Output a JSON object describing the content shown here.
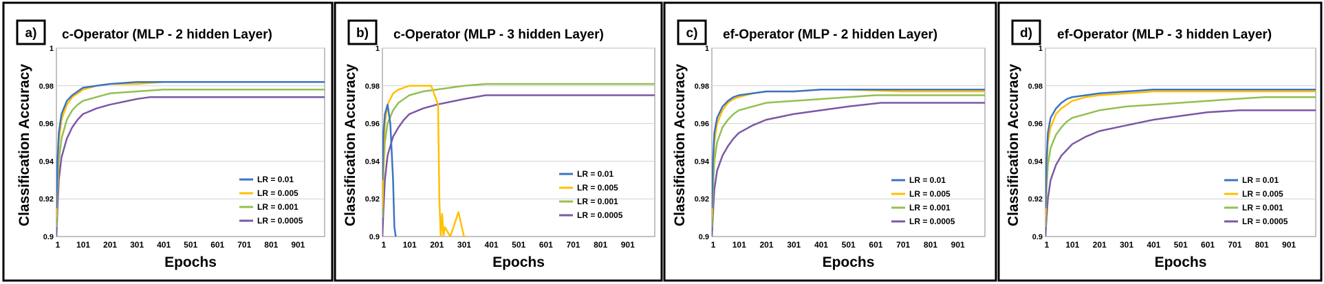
{
  "panels": [
    {
      "letter": "a)",
      "title": "c-Operator  (MLP - 2 hidden Layer)"
    },
    {
      "letter": "b)",
      "title": "c-Operator  (MLP - 3 hidden Layer)"
    },
    {
      "letter": "c)",
      "title": "ef-Operator  (MLP - 2 hidden Layer)"
    },
    {
      "letter": "d)",
      "title": "ef-Operator  (MLP - 3 hidden Layer)"
    }
  ],
  "colors": {
    "lr_001": "#3B73C4",
    "lr_0005": "#FFC000",
    "lr_0001": "#92C050",
    "lr_00005": "#7B57A5"
  },
  "chart_data": [
    {
      "type": "line",
      "xlabel": "Epochs",
      "ylabel": "Classification Accuracy",
      "xlim": [
        1,
        1000
      ],
      "ylim": [
        0.9,
        1.0
      ],
      "xticks": [
        "1",
        "101",
        "201",
        "301",
        "401",
        "501",
        "601",
        "701",
        "801",
        "901"
      ],
      "yticks": [
        "0.9",
        "0.92",
        "0.94",
        "0.96",
        "0.98",
        "1"
      ],
      "legend_position": "bottom-right",
      "series": [
        {
          "name": "LR = 0.01",
          "x": [
            1,
            5,
            10,
            20,
            40,
            60,
            80,
            100,
            150,
            200,
            300,
            400,
            450,
            1000
          ],
          "y": [
            0.915,
            0.94,
            0.955,
            0.965,
            0.972,
            0.975,
            0.977,
            0.979,
            0.98,
            0.981,
            0.982,
            0.982,
            0.982,
            0.982
          ]
        },
        {
          "name": "LR = 0.005",
          "x": [
            1,
            5,
            10,
            20,
            40,
            60,
            80,
            100,
            150,
            200,
            300,
            400,
            450,
            1000
          ],
          "y": [
            0.91,
            0.935,
            0.95,
            0.962,
            0.97,
            0.974,
            0.976,
            0.978,
            0.98,
            0.981,
            0.981,
            0.982,
            0.982,
            0.982
          ]
        },
        {
          "name": "LR = 0.001",
          "x": [
            1,
            5,
            10,
            20,
            40,
            60,
            80,
            100,
            150,
            200,
            300,
            400,
            500,
            1000
          ],
          "y": [
            0.905,
            0.925,
            0.94,
            0.952,
            0.962,
            0.967,
            0.97,
            0.972,
            0.974,
            0.976,
            0.977,
            0.978,
            0.978,
            0.978
          ]
        },
        {
          "name": "LR = 0.0005",
          "x": [
            1,
            5,
            10,
            20,
            40,
            60,
            80,
            100,
            150,
            200,
            300,
            350,
            1000
          ],
          "y": [
            0.9,
            0.915,
            0.93,
            0.942,
            0.952,
            0.958,
            0.962,
            0.965,
            0.968,
            0.97,
            0.973,
            0.974,
            0.974
          ]
        }
      ]
    },
    {
      "type": "line",
      "xlabel": "Epochs",
      "ylabel": "Classification Accuracy",
      "xlim": [
        1,
        1000
      ],
      "ylim": [
        0.9,
        1.0
      ],
      "xticks": [
        "1",
        "101",
        "201",
        "301",
        "401",
        "501",
        "601",
        "701",
        "801",
        "901"
      ],
      "yticks": [
        "0.9",
        "0.92",
        "0.94",
        "0.96",
        "0.98",
        "1"
      ],
      "legend_position": "bottom-right",
      "series": [
        {
          "name": "LR = 0.01",
          "x": [
            1,
            5,
            10,
            20,
            30,
            40,
            45,
            50
          ],
          "y": [
            0.93,
            0.955,
            0.965,
            0.97,
            0.96,
            0.93,
            0.905,
            0.9
          ]
        },
        {
          "name": "LR = 0.005",
          "x": [
            1,
            5,
            10,
            20,
            40,
            60,
            80,
            100,
            140,
            180,
            205,
            210,
            215,
            220,
            225,
            230,
            250,
            280,
            300,
            310
          ],
          "y": [
            0.915,
            0.945,
            0.96,
            0.97,
            0.976,
            0.978,
            0.979,
            0.98,
            0.98,
            0.98,
            0.97,
            0.92,
            0.9,
            0.912,
            0.9,
            0.905,
            0.9,
            0.913,
            0.9,
            0.9
          ]
        },
        {
          "name": "LR = 0.001",
          "x": [
            1,
            5,
            10,
            20,
            40,
            60,
            80,
            100,
            150,
            200,
            300,
            380,
            1000
          ],
          "y": [
            0.91,
            0.935,
            0.95,
            0.96,
            0.967,
            0.971,
            0.973,
            0.975,
            0.977,
            0.978,
            0.98,
            0.981,
            0.981
          ]
        },
        {
          "name": "LR = 0.0005",
          "x": [
            1,
            5,
            10,
            20,
            40,
            60,
            80,
            100,
            150,
            200,
            300,
            380,
            1000
          ],
          "y": [
            0.9,
            0.915,
            0.93,
            0.943,
            0.953,
            0.958,
            0.962,
            0.965,
            0.968,
            0.97,
            0.973,
            0.975,
            0.975
          ]
        }
      ]
    },
    {
      "type": "line",
      "xlabel": "Epochs",
      "ylabel": "Classification Accuracy",
      "xlim": [
        1,
        1000
      ],
      "ylim": [
        0.9,
        1.0
      ],
      "xticks": [
        "1",
        "101",
        "201",
        "301",
        "401",
        "501",
        "601",
        "701",
        "801",
        "901"
      ],
      "yticks": [
        "0.9",
        "0.92",
        "0.94",
        "0.96",
        "0.98",
        "1"
      ],
      "legend_position": "bottom-right",
      "series": [
        {
          "name": "LR = 0.01",
          "x": [
            1,
            5,
            10,
            20,
            40,
            60,
            80,
            100,
            150,
            200,
            300,
            400,
            550,
            1000
          ],
          "y": [
            0.915,
            0.94,
            0.955,
            0.963,
            0.969,
            0.972,
            0.974,
            0.975,
            0.976,
            0.977,
            0.977,
            0.978,
            0.978,
            0.978
          ]
        },
        {
          "name": "LR = 0.005",
          "x": [
            1,
            5,
            10,
            20,
            40,
            60,
            80,
            100,
            150,
            200,
            300,
            400,
            500,
            700,
            1000
          ],
          "y": [
            0.91,
            0.935,
            0.95,
            0.96,
            0.967,
            0.971,
            0.973,
            0.974,
            0.976,
            0.977,
            0.977,
            0.978,
            0.978,
            0.977,
            0.977
          ]
        },
        {
          "name": "LR = 0.001",
          "x": [
            1,
            5,
            10,
            20,
            40,
            60,
            80,
            100,
            150,
            200,
            300,
            400,
            500,
            600,
            1000
          ],
          "y": [
            0.905,
            0.925,
            0.94,
            0.95,
            0.958,
            0.962,
            0.965,
            0.967,
            0.969,
            0.971,
            0.972,
            0.973,
            0.974,
            0.975,
            0.975
          ]
        },
        {
          "name": "LR = 0.0005",
          "x": [
            1,
            5,
            10,
            20,
            40,
            60,
            80,
            100,
            150,
            200,
            300,
            400,
            500,
            620,
            1000
          ],
          "y": [
            0.9,
            0.912,
            0.925,
            0.935,
            0.943,
            0.948,
            0.952,
            0.955,
            0.959,
            0.962,
            0.965,
            0.967,
            0.969,
            0.971,
            0.971
          ]
        }
      ]
    },
    {
      "type": "line",
      "xlabel": "Epochs",
      "ylabel": "Classification Accuracy",
      "xlim": [
        1,
        1000
      ],
      "ylim": [
        0.9,
        1.0
      ],
      "xticks": [
        "1",
        "101",
        "201",
        "301",
        "401",
        "501",
        "601",
        "701",
        "801",
        "901"
      ],
      "yticks": [
        "0.9",
        "0.92",
        "0.94",
        "0.96",
        "0.98",
        "1"
      ],
      "legend_position": "bottom-right",
      "series": [
        {
          "name": "LR = 0.01",
          "x": [
            1,
            5,
            10,
            20,
            40,
            60,
            80,
            100,
            150,
            200,
            300,
            400,
            450,
            1000
          ],
          "y": [
            0.915,
            0.94,
            0.955,
            0.963,
            0.968,
            0.971,
            0.973,
            0.974,
            0.975,
            0.976,
            0.977,
            0.978,
            0.978,
            0.978
          ]
        },
        {
          "name": "LR = 0.005",
          "x": [
            1,
            5,
            10,
            20,
            40,
            60,
            80,
            100,
            150,
            200,
            300,
            400,
            510,
            1000
          ],
          "y": [
            0.91,
            0.935,
            0.95,
            0.958,
            0.965,
            0.968,
            0.97,
            0.972,
            0.974,
            0.975,
            0.976,
            0.977,
            0.977,
            0.977
          ]
        },
        {
          "name": "LR = 0.001",
          "x": [
            1,
            5,
            10,
            20,
            40,
            60,
            80,
            100,
            150,
            200,
            300,
            400,
            500,
            600,
            700,
            810,
            1000
          ],
          "y": [
            0.905,
            0.925,
            0.938,
            0.947,
            0.954,
            0.958,
            0.961,
            0.963,
            0.965,
            0.967,
            0.969,
            0.97,
            0.971,
            0.972,
            0.973,
            0.974,
            0.974
          ]
        },
        {
          "name": "LR = 0.0005",
          "x": [
            1,
            5,
            10,
            20,
            40,
            60,
            80,
            100,
            150,
            200,
            300,
            400,
            500,
            600,
            720,
            1000
          ],
          "y": [
            0.9,
            0.91,
            0.92,
            0.93,
            0.938,
            0.943,
            0.946,
            0.949,
            0.953,
            0.956,
            0.959,
            0.962,
            0.964,
            0.966,
            0.967,
            0.967
          ]
        }
      ]
    }
  ]
}
